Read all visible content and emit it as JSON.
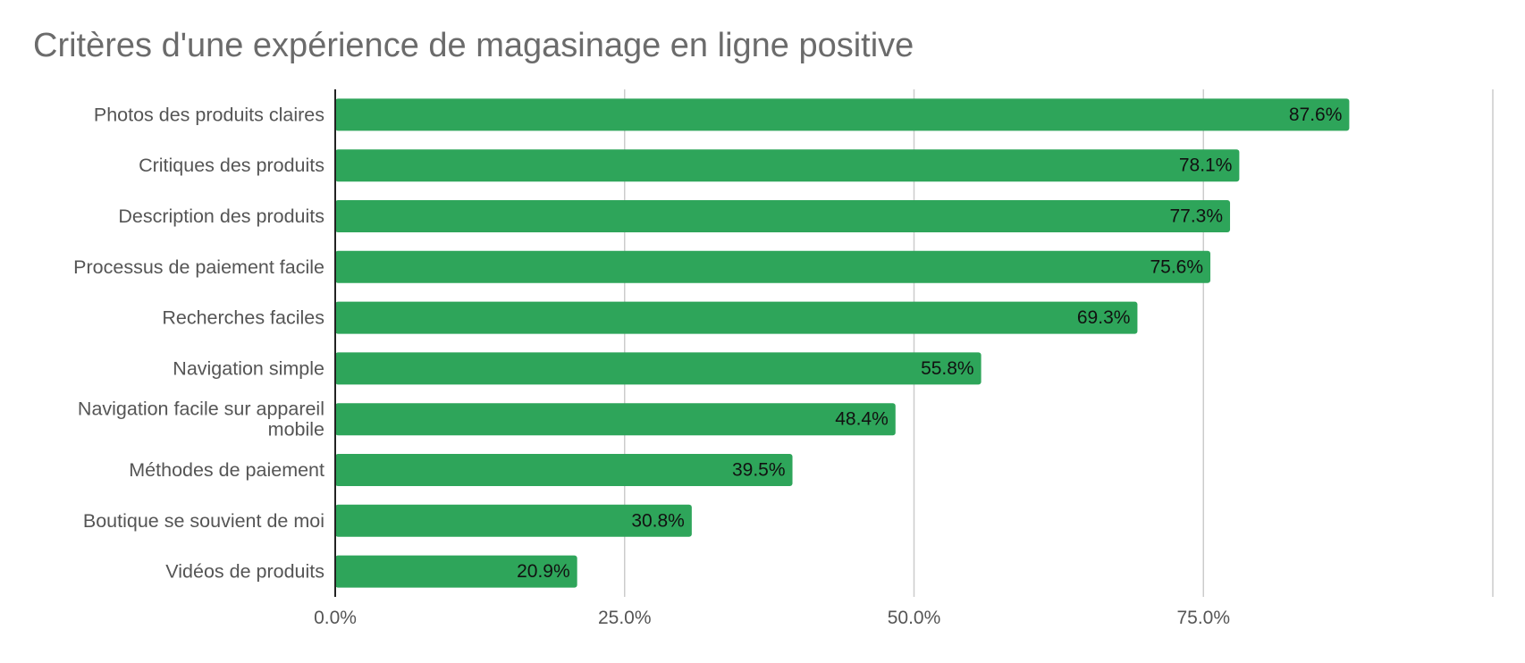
{
  "chart_data": {
    "type": "bar",
    "orientation": "horizontal",
    "title": "Critères d'une expérience de magasinage en ligne positive",
    "xlabel": "",
    "ylabel": "",
    "categories": [
      "Photos des produits claires",
      "Critiques des produits",
      "Description des produits",
      "Processus de paiement facile",
      "Recherches faciles",
      "Navigation simple",
      "Navigation facile sur appareil mobile",
      "Méthodes de paiement",
      "Boutique se souvient de moi",
      "Vidéos de produits"
    ],
    "category_display_lines": [
      [
        "Photos des produits claires"
      ],
      [
        "Critiques des produits"
      ],
      [
        "Description des produits"
      ],
      [
        "Processus de paiement facile"
      ],
      [
        "Recherches faciles"
      ],
      [
        "Navigation simple"
      ],
      [
        "Navigation facile sur appareil",
        "mobile"
      ],
      [
        "Méthodes de paiement"
      ],
      [
        "Boutique se souvient de moi"
      ],
      [
        "Vidéos de produits"
      ]
    ],
    "values": [
      87.6,
      78.1,
      77.3,
      75.6,
      69.3,
      55.8,
      48.4,
      39.5,
      30.8,
      20.9
    ],
    "value_labels": [
      "87.6%",
      "78.1%",
      "77.3%",
      "75.6%",
      "69.3%",
      "55.8%",
      "48.4%",
      "39.5%",
      "30.8%",
      "20.9%"
    ],
    "xlim": [
      0,
      100
    ],
    "x_ticks": [
      0,
      25,
      50,
      75
    ],
    "x_tick_labels": [
      "0.0%",
      "25.0%",
      "50.0%",
      "75.0%"
    ],
    "x_gridlines": [
      25,
      50,
      75,
      100
    ],
    "grid": true,
    "legend": "none",
    "colors": {
      "bar": "#2ea55a",
      "grid": "#cccccc",
      "axis": "#222222",
      "title": "#6b6b6b",
      "category_label": "#555555",
      "tick_label": "#555555",
      "value_label": "#111111"
    }
  }
}
